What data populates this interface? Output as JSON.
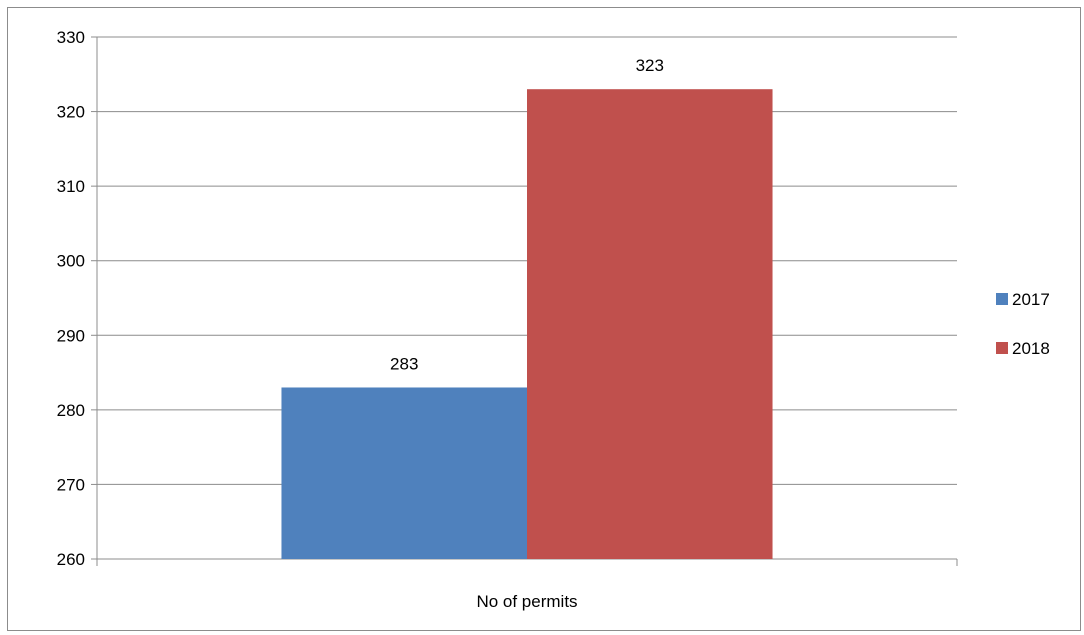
{
  "chart_data": {
    "type": "bar",
    "categories": [
      "No of permits"
    ],
    "series": [
      {
        "name": "2017",
        "values": [
          283
        ],
        "color": "#4f81bd"
      },
      {
        "name": "2018",
        "values": [
          323
        ],
        "color": "#c0504d"
      }
    ],
    "ylim": [
      260,
      330
    ],
    "yticks": [
      260,
      270,
      280,
      290,
      300,
      310,
      320,
      330
    ],
    "grid": true,
    "legend": "right",
    "data_labels": true
  }
}
